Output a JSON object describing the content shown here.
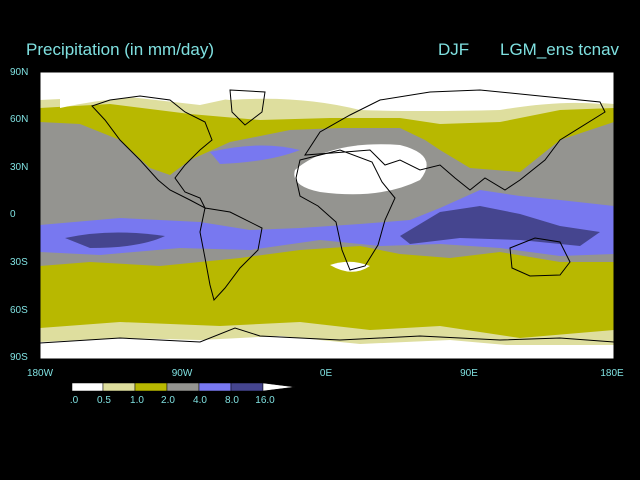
{
  "header": {
    "title": "Precipitation (in mm/day)",
    "season": "DJF",
    "run": "LGM_ens tcnav"
  },
  "axes": {
    "lat_labels": [
      "90N",
      "60N",
      "30N",
      "0",
      "30S",
      "60S",
      "90S"
    ],
    "lon_labels": [
      "180W",
      "90W",
      "0E",
      "90E",
      "180E"
    ]
  },
  "colorbar": {
    "labels": [
      ".0",
      "0.5",
      "1.0",
      "2.0",
      "4.0",
      "8.0",
      "16.0"
    ],
    "colors": [
      "#ffffff",
      "#dede9e",
      "#b8b800",
      "#949490",
      "#7878f0",
      "#45458f"
    ]
  },
  "palette": {
    "text": "#7fe0e0",
    "coast": "#000000",
    "background": "#000000"
  }
}
